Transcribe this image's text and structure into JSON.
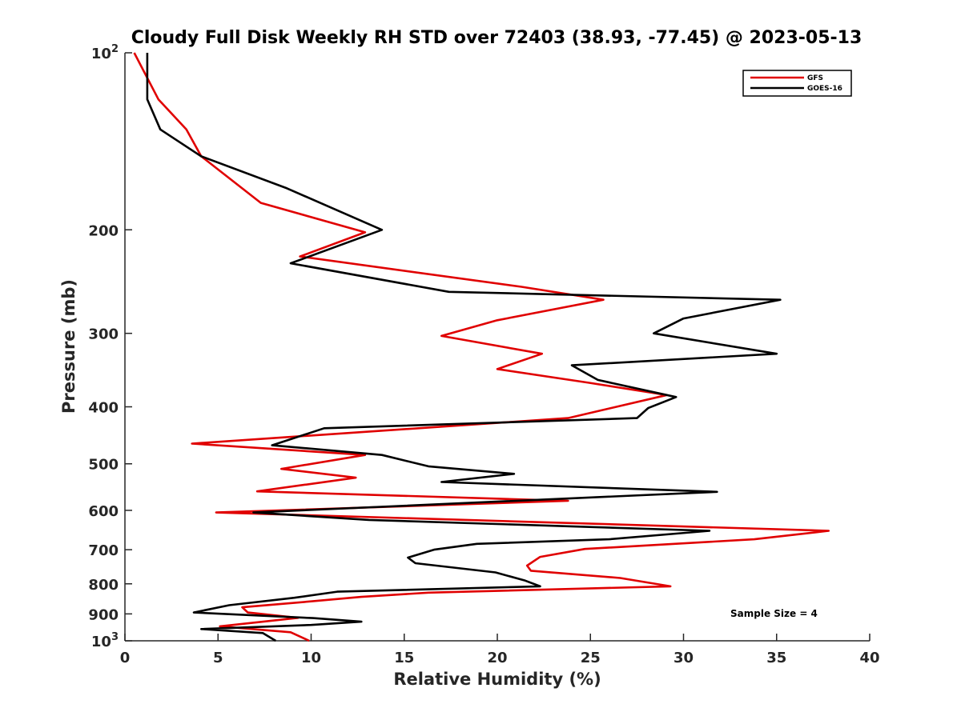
{
  "chart_data": {
    "type": "line",
    "title": "Cloudy Full Disk Weekly RH STD over 72403 (38.93, -77.45) @ 2023-05-13",
    "xlabel": "Relative Humidity (%)",
    "ylabel": "Pressure (mb)",
    "xlim": [
      0,
      40
    ],
    "ylim": [
      1000,
      100
    ],
    "yscale": "log",
    "yreversed": true,
    "x_ticks": [
      "0",
      "5",
      "10",
      "15",
      "20",
      "25",
      "30",
      "35",
      "40"
    ],
    "y_ticks": [
      {
        "value": 100,
        "base": "10",
        "exp": "2"
      },
      {
        "value": 200,
        "label": "200"
      },
      {
        "value": 300,
        "label": "300"
      },
      {
        "value": 400,
        "label": "400"
      },
      {
        "value": 500,
        "label": "500"
      },
      {
        "value": 600,
        "label": "600"
      },
      {
        "value": 700,
        "label": "700"
      },
      {
        "value": 800,
        "label": "800"
      },
      {
        "value": 900,
        "label": "900"
      },
      {
        "value": 1000,
        "base": "10",
        "exp": "3"
      }
    ],
    "grid": false,
    "legend_position": "top-right",
    "annotation": "Sample Size = 4",
    "series": [
      {
        "name": "GFS",
        "color": "#e00000",
        "points": [
          [
            0.5,
            100
          ],
          [
            1.8,
            120
          ],
          [
            3.3,
            135
          ],
          [
            4.1,
            150
          ],
          [
            7.3,
            180
          ],
          [
            12.9,
            202
          ],
          [
            9.4,
            222
          ],
          [
            21.3,
            250
          ],
          [
            25.7,
            263
          ],
          [
            20.0,
            285
          ],
          [
            17.0,
            303
          ],
          [
            22.4,
            325
          ],
          [
            20.0,
            345
          ],
          [
            24.9,
            364
          ],
          [
            29.1,
            382
          ],
          [
            23.8,
            418
          ],
          [
            3.6,
            462
          ],
          [
            12.9,
            483
          ],
          [
            8.4,
            510
          ],
          [
            12.4,
            528
          ],
          [
            7.1,
            557
          ],
          [
            23.8,
            578
          ],
          [
            4.9,
            605
          ],
          [
            37.8,
            650
          ],
          [
            33.8,
            672
          ],
          [
            24.7,
            698
          ],
          [
            22.3,
            720
          ],
          [
            21.6,
            745
          ],
          [
            21.8,
            760
          ],
          [
            26.6,
            782
          ],
          [
            29.3,
            808
          ],
          [
            16.3,
            828
          ],
          [
            12.7,
            842
          ],
          [
            10.0,
            857
          ],
          [
            6.3,
            877
          ],
          [
            6.6,
            895
          ],
          [
            9.3,
            914
          ],
          [
            5.1,
            945
          ],
          [
            8.9,
            967
          ],
          [
            9.9,
            1000
          ]
        ]
      },
      {
        "name": "GOES-16",
        "color": "#000000",
        "points": [
          [
            1.2,
            100
          ],
          [
            1.2,
            120
          ],
          [
            1.9,
            135
          ],
          [
            4.1,
            150
          ],
          [
            8.7,
            170
          ],
          [
            13.8,
            200
          ],
          [
            8.9,
            228
          ],
          [
            17.4,
            255
          ],
          [
            35.2,
            263
          ],
          [
            30.0,
            283
          ],
          [
            28.4,
            300
          ],
          [
            35.0,
            325
          ],
          [
            24.0,
            340
          ],
          [
            25.4,
            360
          ],
          [
            29.6,
            385
          ],
          [
            28.1,
            402
          ],
          [
            27.5,
            418
          ],
          [
            10.7,
            435
          ],
          [
            7.9,
            465
          ],
          [
            13.8,
            483
          ],
          [
            16.3,
            505
          ],
          [
            20.9,
            520
          ],
          [
            17.0,
            537
          ],
          [
            31.8,
            558
          ],
          [
            6.9,
            605
          ],
          [
            13.1,
            623
          ],
          [
            31.4,
            650
          ],
          [
            26.0,
            672
          ],
          [
            18.9,
            684
          ],
          [
            16.6,
            700
          ],
          [
            15.2,
            722
          ],
          [
            15.6,
            738
          ],
          [
            19.9,
            765
          ],
          [
            21.5,
            790
          ],
          [
            22.3,
            808
          ],
          [
            11.4,
            825
          ],
          [
            9.1,
            845
          ],
          [
            5.6,
            870
          ],
          [
            3.7,
            895
          ],
          [
            10.1,
            915
          ],
          [
            12.7,
            928
          ],
          [
            10.0,
            940
          ],
          [
            4.1,
            955
          ],
          [
            7.4,
            970
          ],
          [
            8.1,
            1000
          ]
        ]
      }
    ]
  }
}
